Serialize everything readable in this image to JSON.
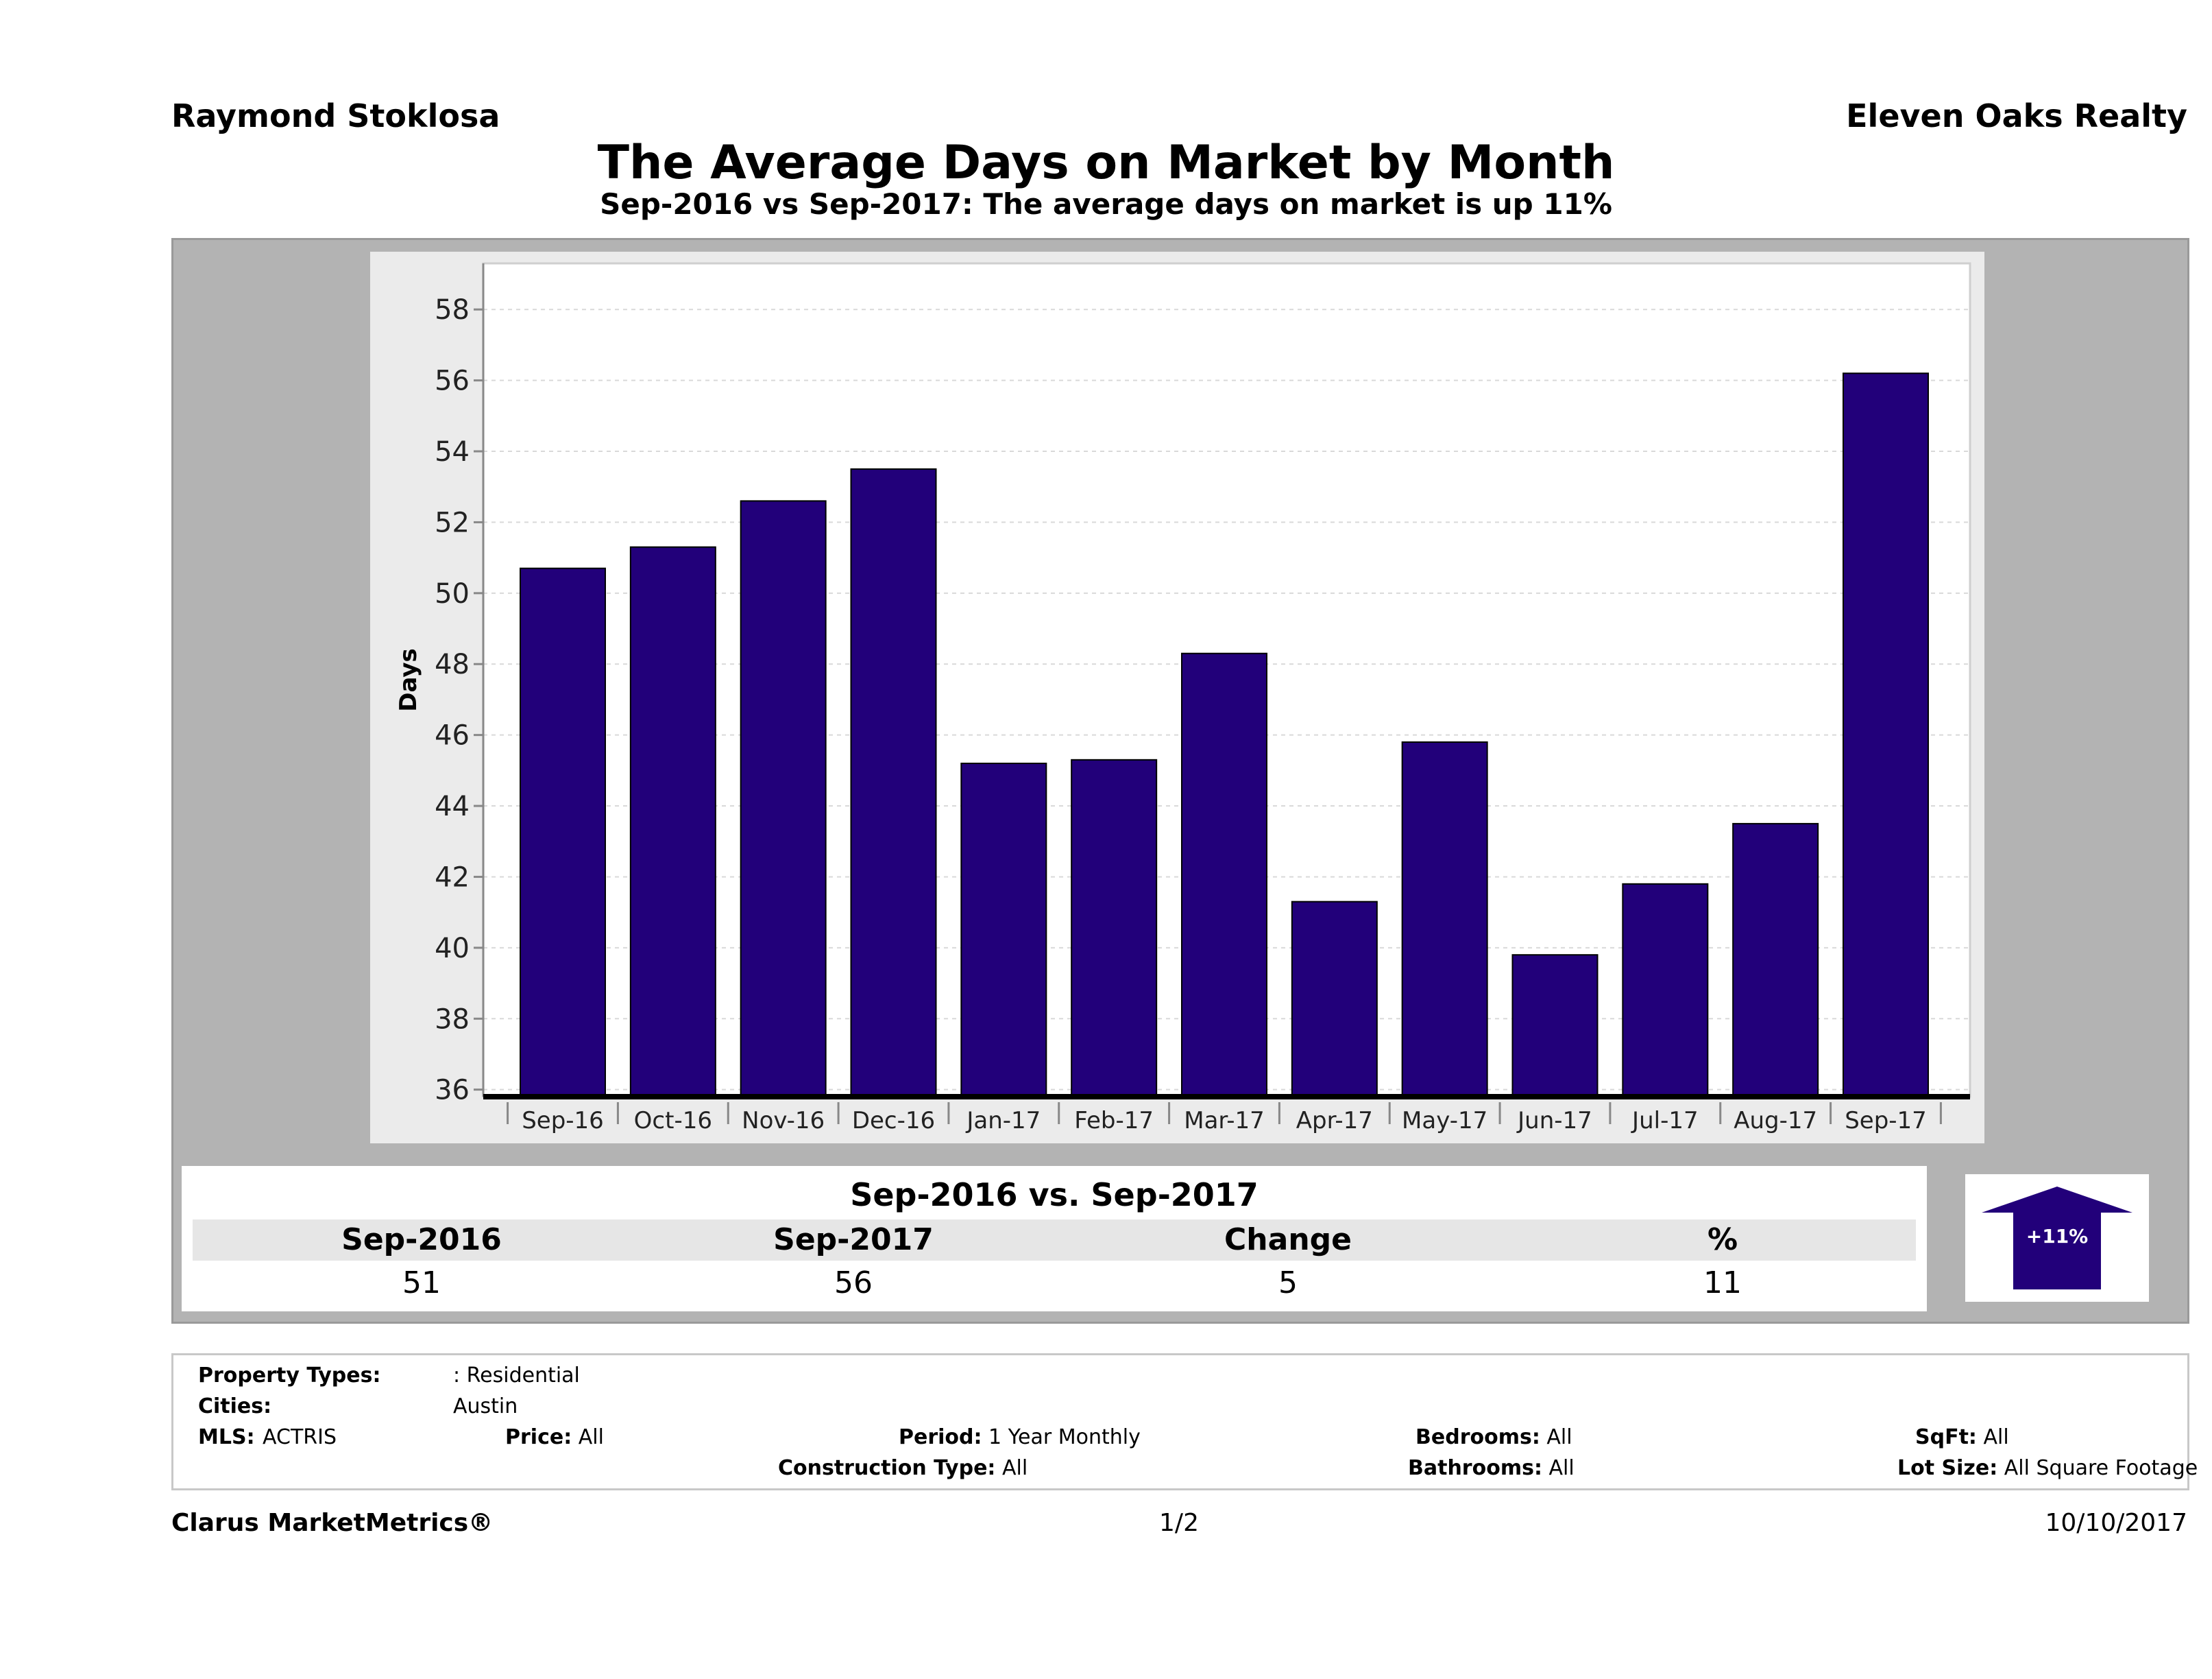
{
  "header": {
    "agent_name": "Raymond Stoklosa",
    "company": "Eleven Oaks Realty",
    "title": "The Average Days on Market by Month",
    "subtitle": "Sep-2016 vs Sep-2017: The average days on market is up 11%"
  },
  "chart_data": {
    "type": "bar",
    "title": "The Average Days on Market by Month",
    "ylabel": "Days",
    "xlabel": "",
    "categories": [
      "Sep-16",
      "Oct-16",
      "Nov-16",
      "Dec-16",
      "Jan-17",
      "Feb-17",
      "Mar-17",
      "Apr-17",
      "May-17",
      "Jun-17",
      "Jul-17",
      "Aug-17",
      "Sep-17"
    ],
    "values": [
      50.7,
      51.3,
      52.6,
      53.5,
      45.2,
      45.3,
      48.3,
      41.3,
      45.8,
      39.8,
      41.8,
      43.5,
      56.2
    ],
    "ylim": [
      35.8,
      59.3
    ],
    "yticks": [
      36,
      38,
      40,
      42,
      44,
      46,
      48,
      50,
      52,
      54,
      56,
      58
    ],
    "grid": true,
    "bar_color": "#22007a"
  },
  "summary": {
    "title": "Sep-2016 vs. Sep-2017",
    "headers": [
      "Sep-2016",
      "Sep-2017",
      "Change",
      "%"
    ],
    "values": [
      "51",
      "56",
      "5",
      "11"
    ],
    "badge": "+11%",
    "badge_color": "#22007a"
  },
  "criteria": {
    "property_types_label": "Property Types:",
    "property_types_value": ": Residential",
    "cities_label": "Cities:",
    "cities_value": "Austin",
    "mls_label": "MLS:",
    "mls_value": "ACTRIS",
    "price_label": "Price:",
    "price_value": "All",
    "period_label": "Period:",
    "period_value": "1 Year Monthly",
    "construction_label": "Construction Type:",
    "construction_value": "All",
    "bedrooms_label": "Bedrooms:",
    "bedrooms_value": "All",
    "bathrooms_label": "Bathrooms:",
    "bathrooms_value": "All",
    "sqft_label": "SqFt:",
    "sqft_value": "All",
    "lot_size_label": "Lot Size:",
    "lot_size_value": "All Square Footage"
  },
  "footer": {
    "brand": "Clarus MarketMetrics®",
    "page": "1/2",
    "date": "10/10/2017"
  }
}
